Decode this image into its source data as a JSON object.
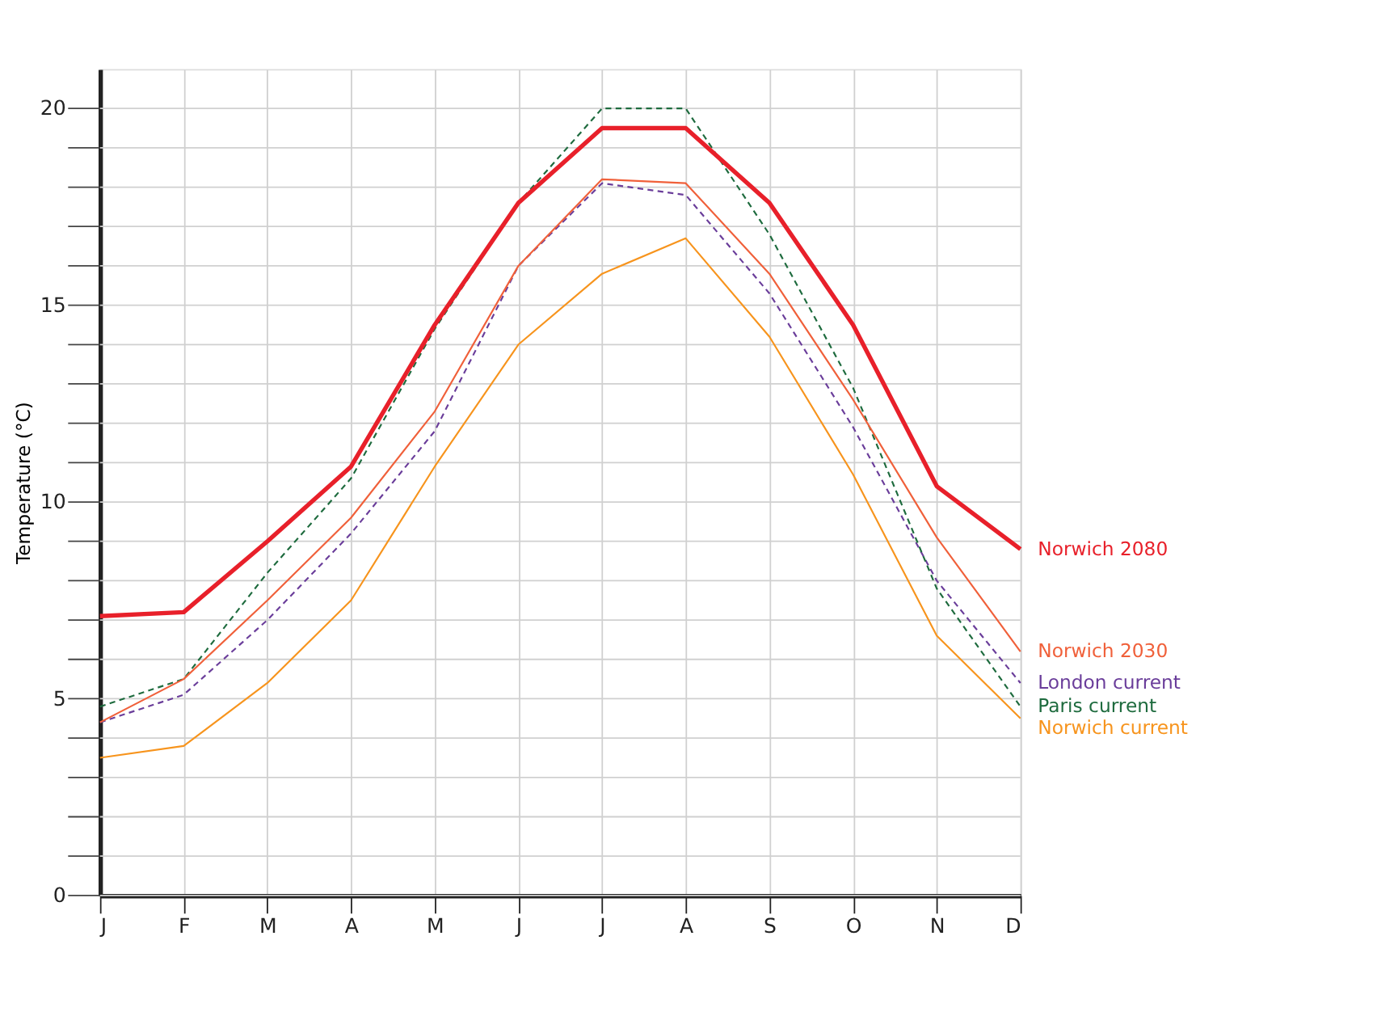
{
  "chart_data": {
    "type": "line",
    "ylabel": "Temperature (°C)",
    "categories": [
      "J",
      "F",
      "M",
      "A",
      "M",
      "J",
      "J",
      "A",
      "S",
      "O",
      "N",
      "D"
    ],
    "ylim": [
      0,
      21
    ],
    "yticks": [
      0,
      {
        "value": 1,
        "label": null
      },
      {
        "value": 2,
        "label": null
      },
      {
        "value": 3,
        "label": null
      },
      {
        "value": 4,
        "label": null
      },
      5,
      {
        "value": 6,
        "label": null
      },
      {
        "value": 7,
        "label": null
      },
      {
        "value": 8,
        "label": null
      },
      {
        "value": 9,
        "label": null
      },
      10,
      {
        "value": 11,
        "label": null
      },
      {
        "value": 12,
        "label": null
      },
      {
        "value": 13,
        "label": null
      },
      {
        "value": 14,
        "label": null
      },
      15,
      {
        "value": 16,
        "label": null
      },
      {
        "value": 17,
        "label": null
      },
      {
        "value": 18,
        "label": null
      },
      {
        "value": 19,
        "label": null
      },
      20
    ],
    "grid": true,
    "marker": "none",
    "series": [
      {
        "name": "Norwich current",
        "color": "#f7941d",
        "line_style": "solid",
        "values": [
          3.5,
          3.8,
          5.4,
          7.5,
          10.9,
          14.0,
          15.8,
          16.7,
          14.2,
          10.7,
          6.6,
          4.5
        ]
      },
      {
        "name": "London current",
        "color": "#6a3d9a",
        "line_style": "dashed",
        "values": [
          4.4,
          5.1,
          7.0,
          9.2,
          11.8,
          16.0,
          18.1,
          17.8,
          15.3,
          11.9,
          8.0,
          5.4
        ]
      },
      {
        "name": "Paris current",
        "color": "#1e6b3e",
        "line_style": "dashed",
        "values": [
          4.8,
          5.5,
          8.2,
          10.6,
          14.4,
          17.6,
          20.0,
          20.0,
          16.8,
          12.9,
          7.8,
          4.8
        ]
      },
      {
        "name": "Norwich 2030",
        "color": "#f0603a",
        "line_style": "solid",
        "values": [
          4.4,
          5.5,
          7.5,
          9.6,
          12.3,
          16.0,
          18.2,
          18.1,
          15.8,
          12.6,
          9.1,
          6.2
        ]
      },
      {
        "name": "Norwich 2080",
        "color": "#e8202a",
        "line_style": "solid",
        "values": [
          7.1,
          7.2,
          9.0,
          10.9,
          14.5,
          17.6,
          19.5,
          19.5,
          17.6,
          14.5,
          10.4,
          8.8
        ]
      }
    ]
  }
}
